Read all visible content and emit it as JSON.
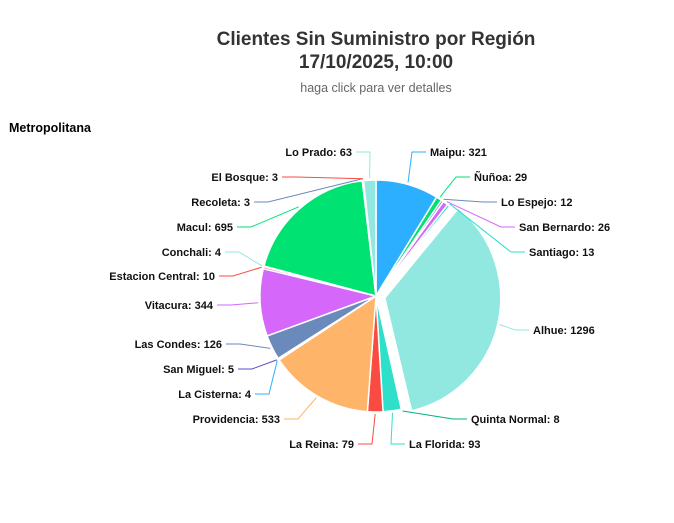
{
  "header": {
    "title_line1": "Clientes Sin Suministro por Región",
    "title_line2": "17/10/2025, 10:00",
    "subtitle": "haga click para ver detalles"
  },
  "region": {
    "name": "Metropolitana"
  },
  "chart_data": {
    "type": "pie",
    "title": "Clientes Sin Suministro por Región",
    "subtitle": "17/10/2025, 10:00",
    "region": "Metropolitana",
    "slices": [
      {
        "name": "Maipu",
        "value": 321,
        "color": "#2caffe"
      },
      {
        "name": "Ñuñoa",
        "value": 29,
        "color": "#00e272"
      },
      {
        "name": "Lo Espejo",
        "value": 12,
        "color": "#6b8abc"
      },
      {
        "name": "San Bernardo",
        "value": 26,
        "color": "#d568fb"
      },
      {
        "name": "Santiago",
        "value": 13,
        "color": "#2ee0ca"
      },
      {
        "name": "Alhue",
        "value": 1296,
        "color": "#91e8e1"
      },
      {
        "name": "Quinta Normal",
        "value": 8,
        "color": "#00b27f"
      },
      {
        "name": "La Florida",
        "value": 93,
        "color": "#2ee0ca"
      },
      {
        "name": "La Reina",
        "value": 79,
        "color": "#fa4b42"
      },
      {
        "name": "Providencia",
        "value": 533,
        "color": "#feb56a"
      },
      {
        "name": "La Cisterna",
        "value": 4,
        "color": "#2caffe"
      },
      {
        "name": "San Miguel",
        "value": 5,
        "color": "#544fc5"
      },
      {
        "name": "Las Condes",
        "value": 126,
        "color": "#6b8abc"
      },
      {
        "name": "Vitacura",
        "value": 344,
        "color": "#d568fb"
      },
      {
        "name": "Estacion Central",
        "value": 10,
        "color": "#fa4b42"
      },
      {
        "name": "Conchali",
        "value": 4,
        "color": "#91e8e1"
      },
      {
        "name": "Macul",
        "value": 695,
        "color": "#00e272"
      },
      {
        "name": "Recoleta",
        "value": 3,
        "color": "#6b8abc"
      },
      {
        "name": "El Bosque",
        "value": 3,
        "color": "#fa4b42"
      },
      {
        "name": "Lo Prado",
        "value": 63,
        "color": "#91e8e1"
      }
    ],
    "exploded": [
      "Alhue"
    ]
  }
}
